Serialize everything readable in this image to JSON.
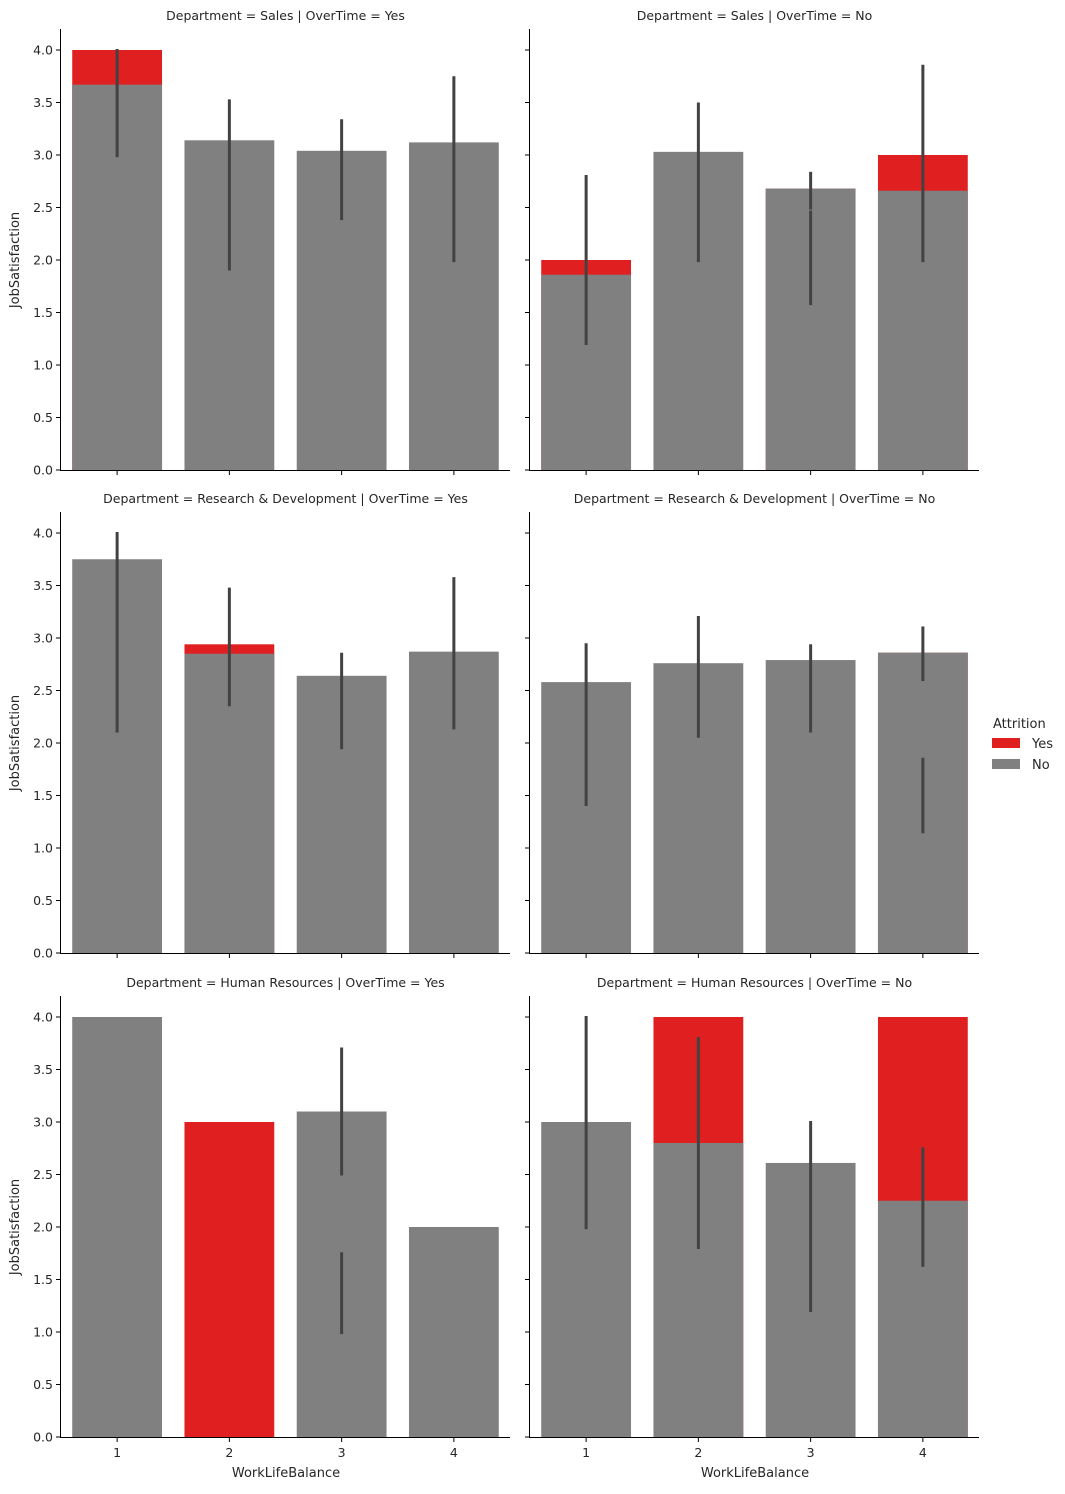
{
  "chart_data": {
    "type": "bar",
    "figure_kind": "faceted bar chart (overlaid hue)",
    "xlabel": "WorkLifeBalance",
    "ylabel": "JobSatisfaction",
    "categories": [
      "1",
      "2",
      "3",
      "4"
    ],
    "yticks": [
      "0.0",
      "0.5",
      "1.0",
      "1.5",
      "2.0",
      "2.5",
      "3.0",
      "3.5",
      "4.0"
    ],
    "ylim": [
      0,
      4.2
    ],
    "grid": false,
    "legend": {
      "title": "Attrition",
      "placement": "right",
      "entries": [
        {
          "label": "Yes",
          "color": "#e02020"
        },
        {
          "label": "No",
          "color": "#808080"
        }
      ]
    },
    "colors": {
      "Yes": "#e02020",
      "No": "#808080",
      "errorbar": "#424242",
      "axis": "#000000"
    },
    "panels": [
      {
        "title": "Department = Sales | OverTime = Yes",
        "series": [
          {
            "name": "Yes",
            "values": [
              4.0,
              null,
              null,
              null
            ],
            "err_low": [
              null,
              null,
              null,
              null
            ],
            "err_high": [
              null,
              null,
              null,
              null
            ]
          },
          {
            "name": "No",
            "values": [
              3.67,
              3.14,
              3.04,
              3.12
            ],
            "err_low": [
              2.98,
              1.9,
              2.38,
              1.98
            ],
            "err_high": [
              4.01,
              3.53,
              3.34,
              3.75
            ]
          }
        ]
      },
      {
        "title": "Department = Sales | OverTime = No",
        "series": [
          {
            "name": "Yes",
            "values": [
              2.0,
              null,
              2.68,
              3.0
            ],
            "err_low": [
              null,
              null,
              1.57,
              null
            ],
            "err_high": [
              null,
              null,
              2.47,
              null
            ]
          },
          {
            "name": "No",
            "values": [
              1.86,
              3.03,
              2.68,
              2.66
            ],
            "err_low": [
              1.19,
              1.98,
              2.48,
              1.98
            ],
            "err_high": [
              2.81,
              3.5,
              2.84,
              3.86
            ]
          }
        ]
      },
      {
        "title": "Department = Research & Development | OverTime = Yes",
        "series": [
          {
            "name": "Yes",
            "values": [
              null,
              2.94,
              null,
              null
            ],
            "err_low": [
              null,
              null,
              null,
              null
            ],
            "err_high": [
              null,
              null,
              null,
              null
            ]
          },
          {
            "name": "No",
            "values": [
              3.75,
              2.85,
              2.64,
              2.87
            ],
            "err_low": [
              2.1,
              2.35,
              1.94,
              2.13
            ],
            "err_high": [
              4.01,
              3.48,
              2.86,
              3.58
            ]
          }
        ]
      },
      {
        "title": "Department = Research & Development | OverTime = No",
        "series": [
          {
            "name": "Yes",
            "values": [
              null,
              null,
              null,
              2.86
            ],
            "err_low": [
              null,
              null,
              null,
              1.14
            ],
            "err_high": [
              null,
              null,
              null,
              1.86
            ]
          },
          {
            "name": "No",
            "values": [
              2.58,
              2.76,
              2.79,
              2.86
            ],
            "err_low": [
              1.4,
              2.05,
              2.1,
              2.59
            ],
            "err_high": [
              2.95,
              3.21,
              2.94,
              3.11
            ]
          }
        ]
      },
      {
        "title": "Department = Human Resources | OverTime = Yes",
        "series": [
          {
            "name": "Yes",
            "values": [
              null,
              3.0,
              null,
              null
            ],
            "err_low": [
              null,
              null,
              0.98,
              null
            ],
            "err_high": [
              null,
              null,
              1.76,
              null
            ]
          },
          {
            "name": "No",
            "values": [
              4.0,
              null,
              3.1,
              2.0
            ],
            "err_low": [
              null,
              null,
              2.49,
              null
            ],
            "err_high": [
              null,
              null,
              3.71,
              null
            ]
          }
        ]
      },
      {
        "title": "Department = Human Resources | OverTime = No",
        "series": [
          {
            "name": "Yes",
            "values": [
              null,
              4.0,
              null,
              4.0
            ],
            "err_low": [
              null,
              null,
              null,
              null
            ],
            "err_high": [
              null,
              null,
              null,
              null
            ]
          },
          {
            "name": "No",
            "values": [
              3.0,
              2.8,
              2.61,
              2.25
            ],
            "err_low": [
              1.98,
              1.79,
              1.19,
              1.62
            ],
            "err_high": [
              4.01,
              3.81,
              3.01,
              2.76
            ]
          }
        ]
      }
    ]
  }
}
